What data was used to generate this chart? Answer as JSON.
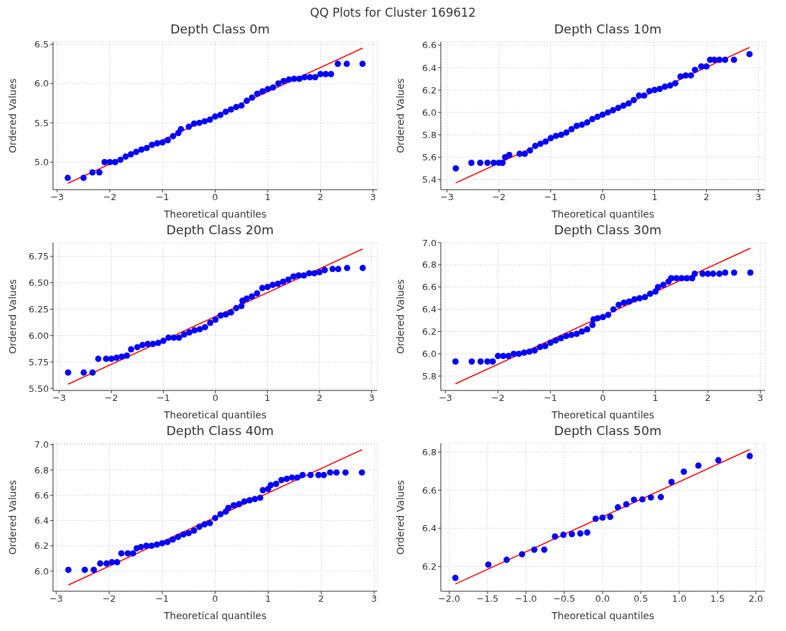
{
  "chart_data": [
    {
      "type": "scatter",
      "title": "Depth Class 0m",
      "xlabel": "Theoretical quantiles",
      "ylabel": "Ordered Values",
      "annotations": [
        "QQ Plots for Cluster 169612"
      ],
      "grid": true,
      "xlim": [
        -3.08,
        3.08
      ],
      "xticks": [
        {
          "value": -3,
          "label": "−3"
        },
        {
          "value": -2,
          "label": "−2"
        },
        {
          "value": -1,
          "label": "−1"
        },
        0,
        1,
        2,
        3
      ],
      "ylim": [
        4.65,
        6.53
      ],
      "yticks": [
        {
          "value": 5,
          "label": "5.0"
        },
        5.5,
        {
          "value": 6,
          "label": "6.0"
        },
        6.5
      ],
      "series": [
        {
          "type": "scatter",
          "color": "#0000ff",
          "x": [
            -2.8,
            -2.5,
            -2.33,
            -2.2,
            -2.1,
            -2.0,
            -1.9,
            -1.8,
            -1.7,
            -1.6,
            -1.5,
            -1.4,
            -1.3,
            -1.2,
            -1.1,
            -1.0,
            -0.9,
            -0.8,
            -0.7,
            -0.65,
            -0.5,
            -0.4,
            -0.3,
            -0.2,
            -0.1,
            0,
            0.1,
            0.2,
            0.3,
            0.4,
            0.5,
            0.6,
            0.7,
            0.8,
            0.9,
            1.0,
            1.1,
            1.2,
            1.3,
            1.4,
            1.5,
            1.6,
            1.7,
            1.8,
            1.9,
            2.0,
            2.1,
            2.2,
            2.33,
            2.5,
            2.8
          ],
          "values": [
            4.8,
            4.8,
            4.87,
            4.87,
            5.0,
            5.0,
            5.0,
            5.03,
            5.07,
            5.1,
            5.13,
            5.16,
            5.18,
            5.22,
            5.24,
            5.25,
            5.28,
            5.33,
            5.37,
            5.42,
            5.45,
            5.49,
            5.5,
            5.52,
            5.54,
            5.58,
            5.6,
            5.64,
            5.67,
            5.7,
            5.72,
            5.78,
            5.82,
            5.87,
            5.9,
            5.93,
            5.95,
            6.0,
            6.03,
            6.05,
            6.06,
            6.06,
            6.08,
            6.08,
            6.08,
            6.12,
            6.12,
            6.12,
            6.25,
            6.25,
            6.25
          ]
        },
        {
          "type": "line",
          "color": "#ff0000",
          "x": [
            -2.8,
            2.8
          ],
          "values": [
            4.73,
            6.45
          ]
        }
      ]
    },
    {
      "type": "scatter",
      "title": "Depth Class 10m",
      "xlabel": "Theoretical quantiles",
      "ylabel": "Ordered Values",
      "grid": true,
      "xlim": [
        -3.12,
        3.13
      ],
      "xticks": [
        {
          "value": -3,
          "label": "−3"
        },
        {
          "value": -2,
          "label": "−2"
        },
        {
          "value": -1,
          "label": "−1"
        },
        0,
        1,
        2,
        3
      ],
      "ylim": [
        5.31,
        6.63
      ],
      "yticks": [
        5.4,
        5.6,
        5.8,
        {
          "value": 6,
          "label": "6.0"
        },
        6.2,
        6.4,
        6.6
      ],
      "series": [
        {
          "type": "scatter",
          "color": "#0000ff",
          "x": [
            -2.83,
            -2.53,
            -2.36,
            -2.22,
            -2.1,
            -2.0,
            -1.93,
            -1.88,
            -1.8,
            -1.6,
            -1.5,
            -1.4,
            -1.3,
            -1.2,
            -1.1,
            -1.0,
            -0.9,
            -0.8,
            -0.7,
            -0.6,
            -0.5,
            -0.4,
            -0.3,
            -0.2,
            -0.1,
            0,
            0.1,
            0.2,
            0.3,
            0.4,
            0.5,
            0.6,
            0.7,
            0.8,
            0.9,
            1.0,
            1.1,
            1.2,
            1.3,
            1.4,
            1.5,
            1.6,
            1.7,
            1.78,
            1.9,
            2.0,
            2.07,
            2.15,
            2.25,
            2.36,
            2.53,
            2.83
          ],
          "values": [
            5.5,
            5.55,
            5.55,
            5.55,
            5.55,
            5.55,
            5.55,
            5.6,
            5.62,
            5.63,
            5.63,
            5.66,
            5.7,
            5.72,
            5.74,
            5.77,
            5.79,
            5.8,
            5.82,
            5.85,
            5.88,
            5.89,
            5.91,
            5.94,
            5.96,
            5.98,
            6.0,
            6.02,
            6.04,
            6.06,
            6.08,
            6.11,
            6.15,
            6.15,
            6.19,
            6.2,
            6.21,
            6.23,
            6.24,
            6.26,
            6.32,
            6.33,
            6.33,
            6.38,
            6.41,
            6.41,
            6.47,
            6.47,
            6.47,
            6.47,
            6.47,
            6.52
          ]
        },
        {
          "type": "line",
          "color": "#ff0000",
          "x": [
            -2.83,
            2.83
          ],
          "values": [
            5.37,
            6.58
          ]
        }
      ]
    },
    {
      "type": "scatter",
      "title": "Depth Class 20m",
      "xlabel": "Theoretical quantiles",
      "ylabel": "Ordered Values",
      "grid": true,
      "xlim": [
        -3.12,
        3.11
      ],
      "xticks": [
        {
          "value": -3,
          "label": "−3"
        },
        {
          "value": -2,
          "label": "−2"
        },
        {
          "value": -1,
          "label": "−1"
        },
        0,
        1,
        2,
        3
      ],
      "ylim": [
        5.48,
        6.88
      ],
      "yticks": [
        {
          "value": 5.5,
          "label": "5.50"
        },
        5.75,
        {
          "value": 6,
          "label": "6.00"
        },
        6.25,
        {
          "value": 6.5,
          "label": "6.50"
        },
        6.75
      ],
      "series": [
        {
          "type": "scatter",
          "color": "#0000ff",
          "x": [
            -2.83,
            -2.53,
            -2.36,
            -2.25,
            -2.1,
            -2.0,
            -1.9,
            -1.8,
            -1.7,
            -1.62,
            -1.5,
            -1.4,
            -1.3,
            -1.2,
            -1.1,
            -1.0,
            -0.9,
            -0.8,
            -0.7,
            -0.6,
            -0.5,
            -0.4,
            -0.3,
            -0.2,
            -0.1,
            0,
            0.1,
            0.2,
            0.3,
            0.4,
            0.5,
            0.52,
            0.6,
            0.7,
            0.8,
            0.9,
            1.0,
            1.1,
            1.2,
            1.3,
            1.4,
            1.5,
            1.6,
            1.7,
            1.8,
            1.9,
            2.0,
            2.1,
            2.25,
            2.36,
            2.53,
            2.83
          ],
          "values": [
            5.65,
            5.65,
            5.65,
            5.78,
            5.78,
            5.78,
            5.79,
            5.8,
            5.81,
            5.87,
            5.89,
            5.91,
            5.92,
            5.92,
            5.93,
            5.95,
            5.98,
            5.98,
            5.98,
            6.01,
            6.03,
            6.05,
            6.06,
            6.08,
            6.12,
            6.15,
            6.19,
            6.2,
            6.22,
            6.26,
            6.28,
            6.33,
            6.35,
            6.37,
            6.4,
            6.45,
            6.46,
            6.48,
            6.49,
            6.51,
            6.53,
            6.56,
            6.57,
            6.57,
            6.59,
            6.59,
            6.6,
            6.62,
            6.63,
            6.63,
            6.64,
            6.64
          ]
        },
        {
          "type": "line",
          "color": "#ff0000",
          "x": [
            -2.83,
            2.83
          ],
          "values": [
            5.54,
            6.82
          ]
        }
      ]
    },
    {
      "type": "scatter",
      "title": "Depth Class 30m",
      "xlabel": "Theoretical quantiles",
      "ylabel": "Ordered Values",
      "grid": true,
      "xlim": [
        -3.09,
        3.09
      ],
      "xticks": [
        {
          "value": -3,
          "label": "−3"
        },
        {
          "value": -2,
          "label": "−2"
        },
        {
          "value": -1,
          "label": "−1"
        },
        0,
        1,
        2,
        3
      ],
      "ylim": [
        5.67,
        7.0
      ],
      "yticks": [
        5.8,
        {
          "value": 6,
          "label": "6.0"
        },
        6.2,
        6.4,
        6.6,
        6.8,
        {
          "value": 7,
          "label": "7.0"
        }
      ],
      "series": [
        {
          "type": "scatter",
          "color": "#0000ff",
          "x": [
            -2.81,
            -2.5,
            -2.33,
            -2.2,
            -2.1,
            -2.0,
            -1.9,
            -1.8,
            -1.7,
            -1.6,
            -1.5,
            -1.4,
            -1.3,
            -1.2,
            -1.1,
            -1.0,
            -0.9,
            -0.8,
            -0.7,
            -0.6,
            -0.5,
            -0.4,
            -0.3,
            -0.2,
            -0.18,
            -0.1,
            0,
            0.1,
            0.2,
            0.3,
            0.4,
            0.5,
            0.6,
            0.7,
            0.8,
            0.9,
            1.0,
            1.05,
            1.15,
            1.25,
            1.3,
            1.4,
            1.5,
            1.6,
            1.7,
            1.75,
            1.9,
            2.0,
            2.1,
            2.22,
            2.33,
            2.5,
            2.81
          ],
          "values": [
            5.93,
            5.93,
            5.93,
            5.93,
            5.93,
            5.98,
            5.98,
            5.98,
            6.0,
            6.0,
            6.01,
            6.02,
            6.03,
            6.06,
            6.07,
            6.1,
            6.12,
            6.14,
            6.16,
            6.17,
            6.18,
            6.2,
            6.22,
            6.26,
            6.31,
            6.32,
            6.33,
            6.35,
            6.4,
            6.44,
            6.46,
            6.47,
            6.49,
            6.5,
            6.51,
            6.54,
            6.56,
            6.6,
            6.62,
            6.65,
            6.68,
            6.68,
            6.68,
            6.68,
            6.68,
            6.72,
            6.72,
            6.72,
            6.72,
            6.72,
            6.73,
            6.73,
            6.73
          ]
        },
        {
          "type": "line",
          "color": "#ff0000",
          "x": [
            -2.81,
            2.81
          ],
          "values": [
            5.73,
            6.95
          ]
        }
      ]
    },
    {
      "type": "scatter",
      "title": "Depth Class 40m",
      "xlabel": "Theoretical quantiles",
      "ylabel": "Ordered Values",
      "grid": true,
      "xlim": [
        -3.06,
        3.06
      ],
      "xticks": [
        {
          "value": -3,
          "label": "−3"
        },
        {
          "value": -2,
          "label": "−2"
        },
        {
          "value": -1,
          "label": "−1"
        },
        0,
        1,
        2,
        3
      ],
      "ylim": [
        5.84,
        7.01
      ],
      "yticks": [
        {
          "value": 6,
          "label": "6.0"
        },
        6.2,
        6.4,
        6.6,
        6.8,
        {
          "value": 7,
          "label": "7.0"
        }
      ],
      "series": [
        {
          "type": "scatter",
          "color": "#0000ff",
          "x": [
            -2.77,
            -2.46,
            -2.29,
            -2.17,
            -2.05,
            -1.95,
            -1.85,
            -1.77,
            -1.65,
            -1.55,
            -1.48,
            -1.4,
            -1.3,
            -1.2,
            -1.1,
            -1.0,
            -0.9,
            -0.8,
            -0.7,
            -0.6,
            -0.5,
            -0.4,
            -0.3,
            -0.2,
            -0.1,
            0,
            0.1,
            0.2,
            0.25,
            0.35,
            0.45,
            0.55,
            0.65,
            0.75,
            0.85,
            0.9,
            1.0,
            1.05,
            1.15,
            1.25,
            1.35,
            1.45,
            1.55,
            1.65,
            1.8,
            1.95,
            2.05,
            2.17,
            2.29,
            2.46,
            2.77
          ],
          "values": [
            6.01,
            6.01,
            6.01,
            6.06,
            6.06,
            6.07,
            6.07,
            6.14,
            6.14,
            6.14,
            6.18,
            6.19,
            6.2,
            6.2,
            6.21,
            6.22,
            6.23,
            6.25,
            6.27,
            6.29,
            6.3,
            6.32,
            6.35,
            6.37,
            6.38,
            6.42,
            6.45,
            6.47,
            6.5,
            6.52,
            6.53,
            6.55,
            6.56,
            6.57,
            6.58,
            6.64,
            6.65,
            6.68,
            6.69,
            6.72,
            6.73,
            6.74,
            6.74,
            6.76,
            6.76,
            6.76,
            6.76,
            6.78,
            6.78,
            6.78,
            6.78
          ]
        },
        {
          "type": "line",
          "color": "#ff0000",
          "x": [
            -2.77,
            2.77
          ],
          "values": [
            5.89,
            6.96
          ]
        }
      ]
    },
    {
      "type": "scatter",
      "title": "Depth Class 50m",
      "xlabel": "Theoretical quantiles",
      "ylabel": "Ordered Values",
      "grid": true,
      "xlim": [
        -2.11,
        2.12
      ],
      "xticks": [
        {
          "value": -2,
          "label": "−2.0"
        },
        {
          "value": -1.5,
          "label": "−1.5"
        },
        {
          "value": -1,
          "label": "−1.0"
        },
        {
          "value": -0.5,
          "label": "−0.5"
        },
        {
          "value": 0,
          "label": "0.0"
        },
        0.5,
        {
          "value": 1,
          "label": "1.0"
        },
        1.5,
        {
          "value": 2,
          "label": "2.0"
        }
      ],
      "ylim": [
        6.07,
        6.845
      ],
      "yticks": [
        6.2,
        6.4,
        6.6,
        6.8
      ],
      "series": [
        {
          "type": "scatter",
          "color": "#0000ff",
          "x": [
            -1.92,
            -1.49,
            -1.25,
            -1.05,
            -0.89,
            -0.76,
            -0.62,
            -0.51,
            -0.4,
            -0.29,
            -0.2,
            -0.09,
            0,
            0.1,
            0.2,
            0.31,
            0.41,
            0.52,
            0.63,
            0.76,
            0.9,
            1.06,
            1.25,
            1.51,
            1.92
          ],
          "values": [
            6.14,
            6.21,
            6.235,
            6.264,
            6.288,
            6.288,
            6.357,
            6.366,
            6.37,
            6.373,
            6.378,
            6.45,
            6.456,
            6.46,
            6.51,
            6.526,
            6.55,
            6.552,
            6.562,
            6.564,
            6.643,
            6.697,
            6.729,
            6.757,
            6.779
          ]
        },
        {
          "type": "line",
          "color": "#ff0000",
          "x": [
            -1.92,
            1.92
          ],
          "values": [
            6.108,
            6.813
          ]
        }
      ]
    }
  ]
}
